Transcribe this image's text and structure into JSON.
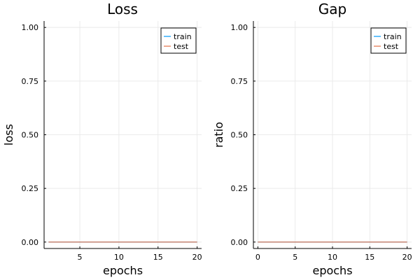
{
  "chart_data": [
    {
      "type": "line",
      "title": "Loss",
      "xlabel": "epochs",
      "ylabel": "loss",
      "x": [
        1,
        2,
        3,
        4,
        5,
        6,
        7,
        8,
        9,
        10,
        11,
        12,
        13,
        14,
        15,
        16,
        17,
        18,
        19,
        20
      ],
      "xlim": [
        0.43,
        20.57
      ],
      "ylim": [
        -0.03,
        1.03
      ],
      "xticks": [
        5,
        10,
        15,
        20
      ],
      "xtick_labels": [
        "5",
        "10",
        "15",
        "20"
      ],
      "yticks": [
        0,
        0.25,
        0.5,
        0.75,
        1.0
      ],
      "ytick_labels": [
        "0.00",
        "0.25",
        "0.50",
        "0.75",
        "1.00"
      ],
      "grid": true,
      "legend_position": "top-right",
      "series": [
        {
          "name": "train",
          "color": "#009af9",
          "values": [
            0,
            0,
            0,
            0,
            0,
            0,
            0,
            0,
            0,
            0,
            0,
            0,
            0,
            0,
            0,
            0,
            0,
            0,
            0,
            0
          ]
        },
        {
          "name": "test",
          "color": "#e26f46",
          "values": [
            0,
            0,
            0,
            0,
            0,
            0,
            0,
            0,
            0,
            0,
            0,
            0,
            0,
            0,
            0,
            0,
            0,
            0,
            0,
            0
          ]
        }
      ]
    },
    {
      "type": "line",
      "title": "Gap",
      "xlabel": "epochs",
      "ylabel": "ratio",
      "x": [
        0,
        1,
        2,
        3,
        4,
        5,
        6,
        7,
        8,
        9,
        10,
        11,
        12,
        13,
        14,
        15,
        16,
        17,
        18,
        19,
        20
      ],
      "xlim": [
        -0.6,
        20.6
      ],
      "ylim": [
        -0.03,
        1.03
      ],
      "xticks": [
        0,
        5,
        10,
        15,
        20
      ],
      "xtick_labels": [
        "0",
        "5",
        "10",
        "15",
        "20"
      ],
      "yticks": [
        0,
        0.25,
        0.5,
        0.75,
        1.0
      ],
      "ytick_labels": [
        "0.00",
        "0.25",
        "0.50",
        "0.75",
        "1.00"
      ],
      "grid": true,
      "legend_position": "top-right",
      "series": [
        {
          "name": "train",
          "color": "#009af9",
          "values": [
            0,
            0,
            0,
            0,
            0,
            0,
            0,
            0,
            0,
            0,
            0,
            0,
            0,
            0,
            0,
            0,
            0,
            0,
            0,
            0,
            0
          ]
        },
        {
          "name": "test",
          "color": "#e26f46",
          "values": [
            0,
            0,
            0,
            0,
            0,
            0,
            0,
            0,
            0,
            0,
            0,
            0,
            0,
            0,
            0,
            0,
            0,
            0,
            0,
            0,
            0
          ]
        }
      ]
    }
  ]
}
